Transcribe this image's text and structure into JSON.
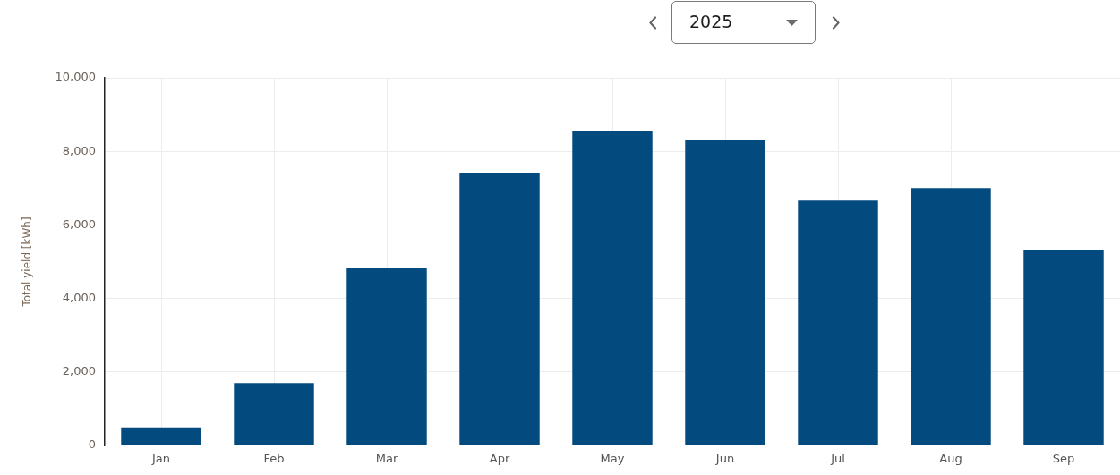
{
  "chart_data": {
    "type": "bar",
    "title": "2025",
    "ylabel": "Total yield [kWh]",
    "categories": [
      "Jan",
      "Feb",
      "Mar",
      "Apr",
      "May",
      "Jun",
      "Jul",
      "Aug",
      "Sep"
    ],
    "values": [
      490,
      1700,
      4820,
      7420,
      8560,
      8320,
      6660,
      7000,
      5320
    ],
    "color": "#034a7f",
    "ylim": [
      0,
      10000
    ],
    "yticks": [
      {
        "value": 0,
        "label": "0"
      },
      {
        "value": 2000,
        "label": "2,000"
      },
      {
        "value": 4000,
        "label": "4,000"
      },
      {
        "value": 6000,
        "label": "6,000"
      },
      {
        "value": 8000,
        "label": "8,000"
      },
      {
        "value": 10000,
        "label": "10,000"
      }
    ],
    "grid": true
  }
}
